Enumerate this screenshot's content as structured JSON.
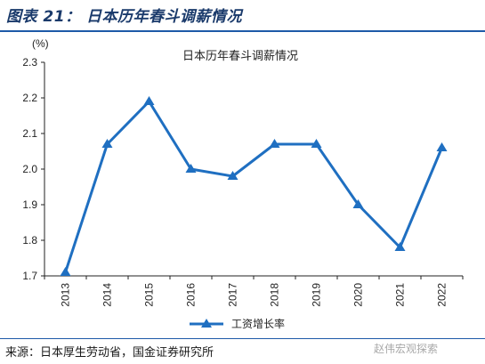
{
  "figure": {
    "caption": "图表 21：  日本历年春斗调薪情况",
    "source": "来源：日本厚生劳动省，国金证券研究所",
    "watermark": "赵伟宏观探索"
  },
  "colors": {
    "accent": "#1e5aa8",
    "series": "#1f6fc1",
    "caption": "#1a3a6b"
  },
  "chart_data": {
    "type": "line",
    "title": "日本历年春斗调薪情况",
    "ylabel": "(%)",
    "xlabel": "",
    "x": [
      "2013",
      "2014",
      "2015",
      "2016",
      "2017",
      "2018",
      "2019",
      "2020",
      "2021",
      "2022"
    ],
    "series": [
      {
        "name": "工资增长率",
        "values": [
          1.71,
          2.07,
          2.19,
          2.0,
          1.98,
          2.07,
          2.07,
          1.9,
          1.78,
          2.06
        ]
      }
    ],
    "ylim": [
      1.7,
      2.3
    ],
    "yticks": [
      "1.7",
      "1.8",
      "1.9",
      "2.0",
      "2.1",
      "2.2",
      "2.3"
    ],
    "grid": false,
    "legend": "bottom-center"
  }
}
